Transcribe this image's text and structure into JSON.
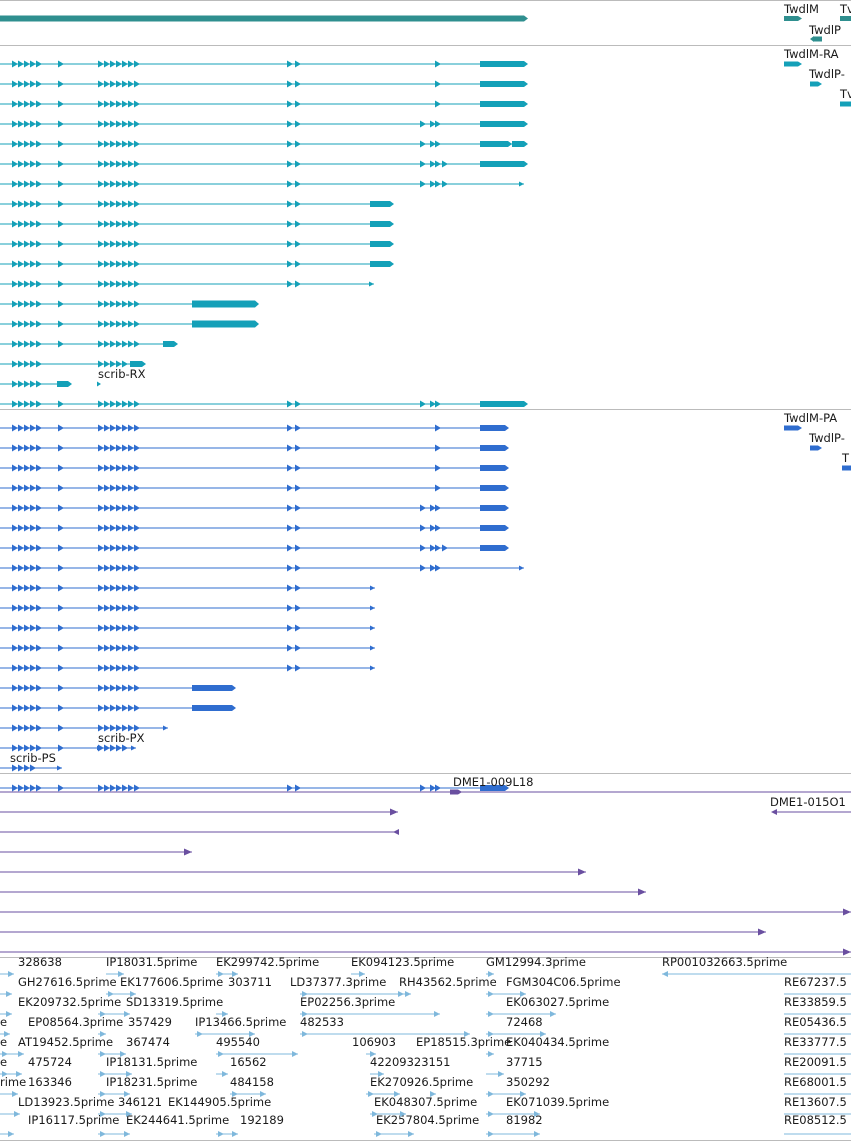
{
  "colors": {
    "gene": "#2f8f8f",
    "rna": "#14a0b8",
    "protein": "#2f6dcf",
    "clone": "#6a4fa0",
    "est": "#7fb8dc",
    "divider": "#bbbbbb"
  },
  "gene_track": {
    "labels": [
      "TwdlM",
      "Tv",
      "TwdlP"
    ]
  },
  "rna_track": {
    "labels": [
      "TwdlM-RA",
      "TwdlP-",
      "Tv",
      "scrib-RX"
    ]
  },
  "protein_track": {
    "labels": [
      "TwdlM-PA",
      "TwdlP-",
      "T",
      "scrib-PX",
      "scrib-PS"
    ]
  },
  "clone_track": {
    "labels": [
      "DME1-009L18",
      "DME1-015O1"
    ]
  },
  "est_track": {
    "labels": [
      "328638",
      "IP18031.5prime",
      "EK299742.5prime",
      "EK094123.5prime",
      "GM12994.3prime",
      "RP001032663.5prime",
      "GH27616.5prime",
      "EK177606.5prime",
      "303711",
      "LD37377.3prime",
      "RH43562.5prime",
      "FGM304C06.5prime",
      "RE67237.5",
      "EK209732.5prime",
      "SD13319.5prime",
      "EP02256.3prime",
      "EK063027.5prime",
      "RE33859.5",
      "e",
      "EP08564.3prime",
      "357429",
      "IP13466.5prime",
      "482533",
      "72468",
      "RE05436.5",
      "e",
      "AT19452.5prime",
      "367474",
      "495540",
      "106903",
      "EP18515.3prime",
      "EK040434.5prime",
      "RE33777.5",
      "e",
      "475724",
      "IP18131.5prime",
      "16562",
      "42209323151",
      "37715",
      "RE20091.5",
      "rime",
      "163346",
      "IP18231.5prime",
      "484158",
      "EK270926.5prime",
      "350292",
      "RE68001.5",
      "LD13923.5prime",
      "346121",
      "EK144905.5prime",
      "EK048307.5prime",
      "EK071039.5prime",
      "RE13607.5",
      "IP16117.5prime",
      "EK244641.5prime",
      "192189",
      "EK257804.5prime",
      "81982",
      "RE08512.5"
    ]
  }
}
